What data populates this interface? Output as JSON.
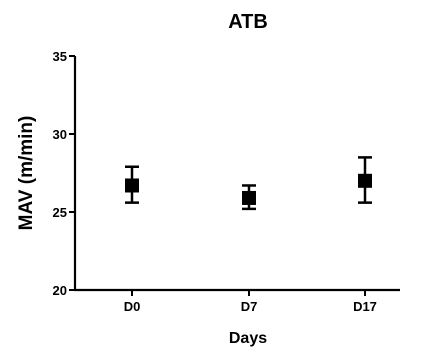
{
  "chart_data": {
    "type": "scatter",
    "title": "ATB",
    "xlabel": "Days",
    "ylabel": "MAV (m/min)",
    "categories": [
      "D0",
      "D7",
      "D17"
    ],
    "series": [
      {
        "values": [
          26.7,
          25.9,
          27.0
        ],
        "error_low": [
          25.6,
          25.2,
          25.6
        ],
        "error_high": [
          27.9,
          26.7,
          28.5
        ]
      }
    ],
    "ylim": [
      20,
      35
    ],
    "yticks": [
      "20",
      "25",
      "30",
      "35"
    ],
    "grid": false,
    "legend": "none",
    "marker": "square",
    "color": "#000000"
  }
}
